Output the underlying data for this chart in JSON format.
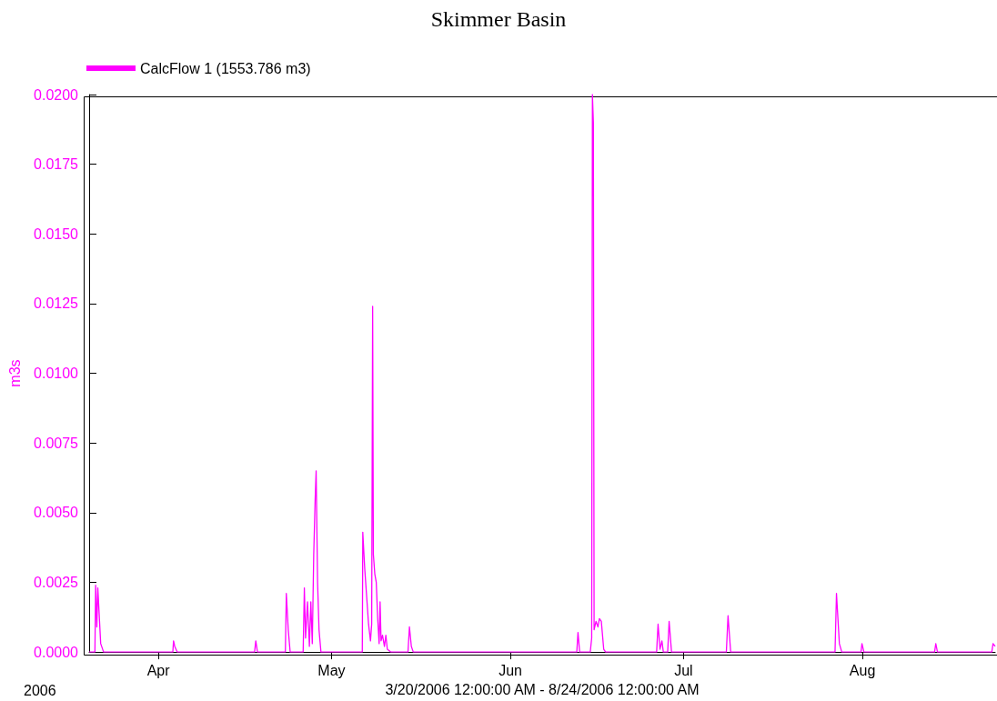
{
  "chart_data": {
    "type": "line",
    "title": "Skimmer Basin",
    "xlabel": "3/20/2006 12:00:00 AM - 8/24/2006 12:00:00 AM",
    "ylabel": "m3s",
    "annotations": [
      "2006"
    ],
    "xlim": [
      "2006-03-20T00:00",
      "2006-08-24T00:00"
    ],
    "xticks": [
      {
        "value": "2006-04-01T00:00",
        "label": "Apr"
      },
      {
        "value": "2006-05-01T00:00",
        "label": "May"
      },
      {
        "value": "2006-06-01T00:00",
        "label": "Jun"
      },
      {
        "value": "2006-07-01T00:00",
        "label": "Jul"
      },
      {
        "value": "2006-08-01T00:00",
        "label": "Aug"
      }
    ],
    "ylim": [
      0,
      0.02
    ],
    "yticks": [
      {
        "value": 0,
        "label": "0.0000"
      },
      {
        "value": 0.0025,
        "label": "0.0025"
      },
      {
        "value": 0.005,
        "label": "0.0050"
      },
      {
        "value": 0.0075,
        "label": "0.0075"
      },
      {
        "value": 0.01,
        "label": "0.0100"
      },
      {
        "value": 0.0125,
        "label": "0.0125"
      },
      {
        "value": 0.015,
        "label": "0.0150"
      },
      {
        "value": 0.0175,
        "label": "0.0175"
      },
      {
        "value": 0.02,
        "label": "0.0200"
      }
    ],
    "grid": false,
    "legend": "top left",
    "marker": "none",
    "line_style": "solid",
    "series": [
      {
        "name": "CalcFlow 1 (1553.786 m3)",
        "color": "#ff00ff",
        "x": [
          "2006-03-20T00:00",
          "2006-03-21T00:00",
          "2006-03-21T03:00",
          "2006-03-21T08:00",
          "2006-03-21T12:00",
          "2006-03-22T00:00",
          "2006-03-22T12:00",
          "2006-04-03T12:00",
          "2006-04-03T15:00",
          "2006-04-03T20:00",
          "2006-04-04T06:00",
          "2006-04-17T16:00",
          "2006-04-17T21:00",
          "2006-04-18T04:00",
          "2006-04-23T00:00",
          "2006-04-23T04:00",
          "2006-04-23T12:00",
          "2006-04-23T20:00",
          "2006-04-26T02:00",
          "2006-04-26T07:00",
          "2006-04-26T12:00",
          "2006-04-26T20:00",
          "2006-04-27T04:00",
          "2006-04-27T10:00",
          "2006-04-27T16:00",
          "2006-04-27T22:00",
          "2006-04-28T04:00",
          "2006-04-28T08:00",
          "2006-04-28T14:00",
          "2006-04-28T20:00",
          "2006-04-29T04:00",
          "2006-05-06T08:00",
          "2006-05-06T10:00",
          "2006-05-06T18:00",
          "2006-05-07T02:00",
          "2006-05-07T10:00",
          "2006-05-07T18:00",
          "2006-05-07T23:00",
          "2006-05-08T03:00",
          "2006-05-08T06:00",
          "2006-05-08T12:00",
          "2006-05-08T18:00",
          "2006-05-09T00:00",
          "2006-05-09T06:00",
          "2006-05-09T10:00",
          "2006-05-09T14:00",
          "2006-05-09T20:00",
          "2006-05-10T04:00",
          "2006-05-10T10:00",
          "2006-05-10T16:00",
          "2006-05-11T06:00",
          "2006-05-14T06:00",
          "2006-05-14T12:00",
          "2006-05-14T20:00",
          "2006-05-15T04:00",
          "2006-06-12T12:00",
          "2006-06-12T17:00",
          "2006-06-13T00:00",
          "2006-06-14T20:00",
          "2006-06-15T02:00",
          "2006-06-15T05:00",
          "2006-06-15T09:00",
          "2006-06-15T12:00",
          "2006-06-15T20:00",
          "2006-06-16T04:00",
          "2006-06-16T10:00",
          "2006-06-16T18:00",
          "2006-06-17T04:00",
          "2006-06-17T12:00",
          "2006-06-26T08:00",
          "2006-06-26T14:00",
          "2006-06-26T22:00",
          "2006-06-27T06:00",
          "2006-06-27T12:00",
          "2006-06-28T06:00",
          "2006-06-28T12:00",
          "2006-06-28T22:00",
          "2006-07-08T10:00",
          "2006-07-08T17:00",
          "2006-07-09T04:00",
          "2006-07-27T06:00",
          "2006-07-27T12:00",
          "2006-07-28T00:00",
          "2006-07-28T10:00",
          "2006-07-31T18:00",
          "2006-07-31T22:00",
          "2006-08-01T06:00",
          "2006-08-13T12:00",
          "2006-08-13T17:00",
          "2006-08-14T00:00",
          "2006-08-23T10:00",
          "2006-08-23T15:00",
          "2006-08-24T00:00"
        ],
        "values": [
          0,
          0,
          0.0024,
          0.0009,
          0.0023,
          0.0003,
          0,
          0,
          0.0004,
          0.0002,
          0,
          0,
          0.0004,
          0,
          0,
          0.0021,
          0.0008,
          0,
          0,
          0.0023,
          0.0005,
          0.0018,
          0.0002,
          0.0018,
          0.0003,
          0.0035,
          0.0055,
          0.0065,
          0.0025,
          0.0008,
          0,
          0,
          0.0043,
          0.003,
          0.002,
          0.001,
          0.0004,
          0.001,
          0.0124,
          0.0035,
          0.0028,
          0.0025,
          0.0012,
          0.0003,
          0.0018,
          0.0004,
          0.0006,
          0.0002,
          0.0006,
          0.0001,
          0,
          0,
          0.0009,
          0.0002,
          0,
          0,
          0.0007,
          0,
          0,
          0.0005,
          0.02,
          0.019,
          0.0008,
          0.0011,
          0.0009,
          0.0012,
          0.0011,
          0.0001,
          0,
          0,
          0.001,
          0.0001,
          0.0004,
          0,
          0,
          0.0011,
          0,
          0,
          0.0013,
          0,
          0,
          0.0021,
          0.0003,
          0,
          0,
          0.0003,
          0,
          0,
          0.0003,
          0,
          0,
          0.0003,
          0.0002
        ]
      }
    ]
  }
}
